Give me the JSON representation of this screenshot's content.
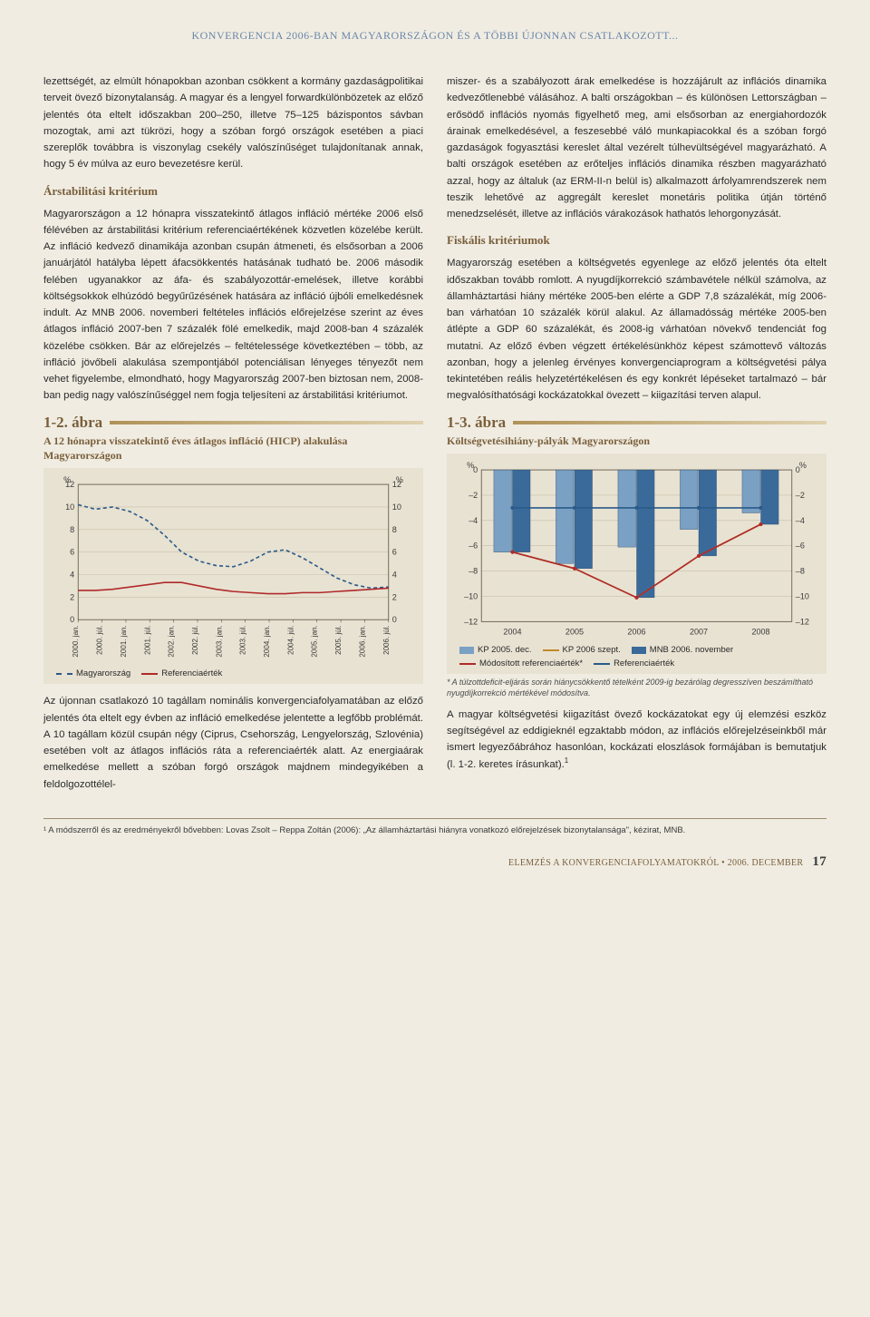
{
  "running_head": "KONVERGENCIA 2006-BAN MAGYARORSZÁGON ÉS A TÖBBI ÚJONNAN CSATLAKOZOTT...",
  "left": {
    "p1": "lezettségét, az elmúlt hónapokban azonban csökkent a kormány gazdaságpolitikai terveit övező bizonytalanság. A magyar és a lengyel forwardkülönbözetek az előző jelentés óta eltelt időszakban 200–250, illetve 75–125 bázispontos sávban mozogtak, ami azt tükrözi, hogy a szóban forgó országok esetében a piaci szereplők továbbra is viszonylag csekély valószínűséget tulajdonítanak annak, hogy 5 év múlva az euro bevezetésre kerül.",
    "sub1": "Árstabilitási kritérium",
    "p2": "Magyarországon a 12 hónapra visszatekintő átlagos infláció mértéke 2006 első félévében az árstabilitási kritérium referenciaértékének közvetlen közelébe került. Az infláció kedvező dinamikája azonban csupán átmeneti, és elsősorban a 2006 januárjától hatályba lépett áfacsökkentés hatásának tudható be. 2006 második felében ugyanakkor az áfa- és szabályozottár-emelések, illetve korábbi költségsokkok elhúzódó begyűrűzésének hatására az infláció újbóli emelkedésnek indult. Az MNB 2006. novemberi feltételes inflációs előrejelzése szerint az éves átlagos infláció 2007-ben 7 százalék fölé emelkedik, majd 2008-ban 4 százalék közelébe csökken. Bár az előrejelzés – feltételessége következtében – több, az infláció jövőbeli alakulása szempontjából potenciálisan lényeges tényezőt nem vehet figyelembe, elmondható, hogy Magyarország 2007-ben biztosan nem, 2008-ban pedig nagy valószínűséggel nem fogja teljesíteni az árstabilitási kritériumot.",
    "p3": "Az újonnan csatlakozó 10 tagállam nominális konvergenciafolyamatában az előző jelentés óta eltelt egy évben az infláció emelkedése jelentette a legfőbb problémát. A 10 tagállam közül csupán négy (Ciprus, Csehország, Lengyelország, Szlovénia) esetében volt az átlagos inflációs ráta a referenciaérték alatt. Az energiaárak emelkedése mellett a szóban forgó országok majdnem mindegyikében a feldolgozottélel-"
  },
  "right": {
    "p1": "miszer- és a szabályozott árak emelkedése is hozzájárult az inflációs dinamika kedvezőtlenebbé válásához. A balti országokban – és különösen Lettországban – erősödő inflációs nyomás figyelhető meg, ami elsősorban az energiahordozók árainak emelkedésével, a feszesebbé váló munkapiacokkal és a szóban forgó gazdaságok fogyasztási kereslet által vezérelt túlhevültségével magyarázható. A balti országok esetében az erőteljes inflációs dinamika részben magyarázható azzal, hogy az általuk (az ERM-II-n belül is) alkalmazott árfolyamrendszerek nem teszik lehetővé az aggregált kereslet monetáris politika útján történő menedzselését, illetve az inflációs várakozások hathatós lehorgonyzását.",
    "sub1": "Fiskális kritériumok",
    "p2": "Magyarország esetében a költségvetés egyenlege az előző jelentés óta eltelt időszakban tovább romlott. A nyugdíjkorrekció számbavétele nélkül számolva, az államháztartási hiány mértéke 2005-ben elérte a GDP 7,8 százalékát, míg 2006-ban várhatóan 10 százalék körül alakul. Az államadósság mértéke 2005-ben átlépte a GDP 60 százalékát, és 2008-ig várhatóan növekvő tendenciát fog mutatni. Az előző évben végzett értékelésünkhöz képest számottevő változás azonban, hogy a jelenleg érvényes konvergenciaprogram a költségvetési pálya tekintetében reális helyzetértékelésen és egy konkrét lépéseket tartalmazó – bár megvalósíthatósági kockázatokkal övezett – kiigazítási terven alapul.",
    "p3": "A magyar költségvetési kiigazítást övező kockázatokat egy új elemzési eszköz segítségével az eddigieknél egzaktabb módon, az inflációs előrejelzéseinkből már ismert legyezőábrához hasonlóan, kockázati eloszlások formájában is bemutatjuk (l. 1-2. keretes írásunkat).",
    "sup": "1"
  },
  "fig12": {
    "label": "1-2. ábra",
    "title": "A 12 hónapra visszatekintő éves átlagos infláció (HICP) alakulása Magyarországon",
    "y_unit": "%",
    "ylim": [
      0,
      12
    ],
    "ytick_step": 2,
    "x_ticks": [
      "2000. jan.",
      "2000. júl.",
      "2001. jan.",
      "2001. júl.",
      "2002. jan.",
      "2002. júl.",
      "2003. jan.",
      "2003. júl.",
      "2004. jan.",
      "2004. júl.",
      "2005. jan.",
      "2005. júl.",
      "2006. jan.",
      "2006. júl."
    ],
    "series": {
      "hungary": {
        "label": "Magyarország",
        "color": "#2a5a8a",
        "dash": "4,3",
        "values": [
          10.2,
          9.8,
          10.0,
          9.6,
          8.8,
          7.5,
          6.0,
          5.2,
          4.8,
          4.7,
          5.2,
          6.0,
          6.2,
          5.5,
          4.6,
          3.7,
          3.1,
          2.8,
          2.9
        ]
      },
      "reference": {
        "label": "Referenciaérték",
        "color": "#b02a2a",
        "dash": "none",
        "values": [
          2.6,
          2.6,
          2.7,
          2.9,
          3.1,
          3.3,
          3.3,
          3.0,
          2.7,
          2.5,
          2.4,
          2.3,
          2.3,
          2.4,
          2.4,
          2.5,
          2.6,
          2.7,
          2.8
        ]
      }
    },
    "background_color": "#e8e2d2",
    "grid_color": "#c8bfa8",
    "axis_color": "#5a5040"
  },
  "fig13": {
    "label": "1-3. ábra",
    "title": "Költségvetésihiány-pályák Magyarországon",
    "y_unit": "%",
    "ylim": [
      -12,
      0
    ],
    "ytick_step": 2,
    "x_ticks": [
      "2004",
      "2005",
      "2006",
      "2007",
      "2008"
    ],
    "bars": {
      "kp2005": {
        "label": "KP 2005. dec.",
        "color": "#7aa0c4",
        "values": [
          -6.5,
          -7.4,
          -6.1,
          -4.7,
          -3.4
        ]
      },
      "mnb2006": {
        "label": "MNB 2006. november",
        "color": "#3a6a9a",
        "values": [
          -6.5,
          -7.8,
          -10.1,
          -6.8,
          -4.3
        ]
      }
    },
    "lines": {
      "kp2006sept": {
        "label": "KP 2006 szept.",
        "color": "#c08a2a",
        "values": [
          -6.5,
          -7.8,
          -10.1,
          -6.8,
          -4.3
        ]
      },
      "modref": {
        "label": "Módosított referenciaérték*",
        "color": "#b02a2a",
        "values": [
          -6.5,
          -7.8,
          -10.1,
          -6.8,
          -4.3
        ]
      },
      "ref": {
        "label": "Referenciaérték",
        "color": "#2a5a8a",
        "values": [
          -3.0,
          -3.0,
          -3.0,
          -3.0,
          -3.0
        ]
      }
    },
    "background_color": "#e8e2d2",
    "grid_color": "#c8bfa8",
    "star_note": "* A túlzottdeficit-eljárás során hiánycsökkentő tételként 2009-ig bezárólag degresszíven beszámítható nyugdíjkorrekció mértékével módosítva."
  },
  "footnote": "¹ A módszerről és az eredményekről bővebben: Lovas Zsolt – Reppa Zoltán (2006): „Az államháztartási hiányra vonatkozó előrejelzések bizonytalansága\", kézirat, MNB.",
  "footer": {
    "text": "ELEMZÉS A KONVERGENCIAFOLYAMATOKRÓL • 2006. DECEMBER",
    "page": "17"
  }
}
